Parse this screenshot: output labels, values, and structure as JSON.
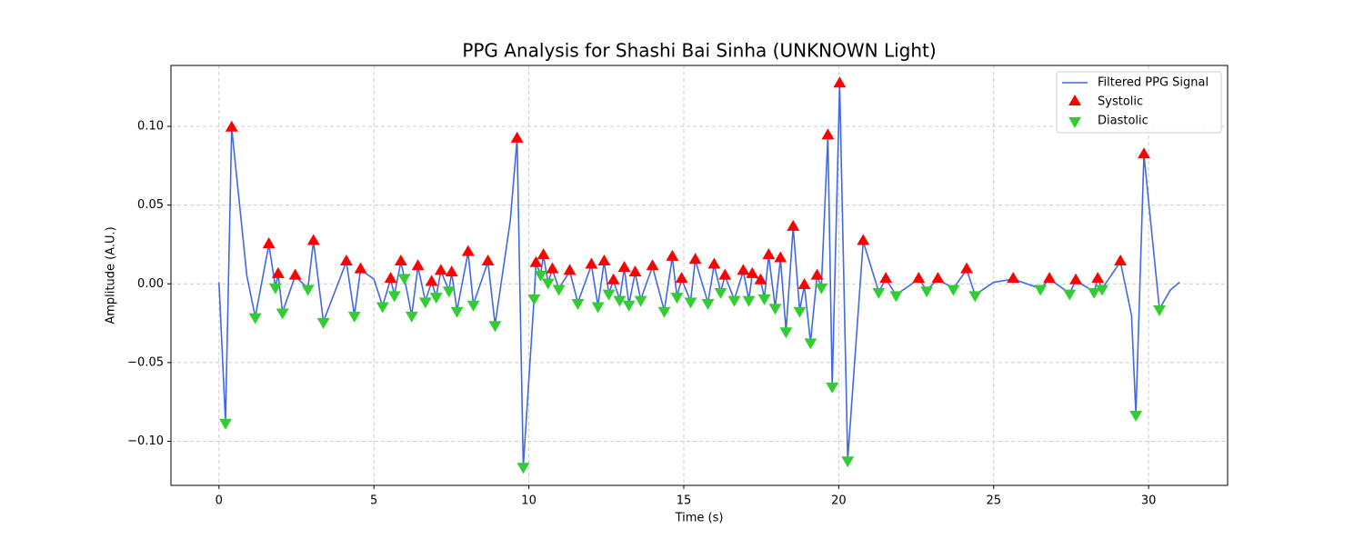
{
  "chart_data": {
    "type": "line",
    "title": "PPG Analysis for Shashi Bai Sinha (UNKNOWN Light)",
    "xlabel": "Time (s)",
    "ylabel": "Amplitude (A.U.)",
    "xlim": [
      -1.55,
      32.55
    ],
    "ylim": [
      -0.128,
      0.1387
    ],
    "xticks": [
      0,
      5,
      10,
      15,
      20,
      25,
      30
    ],
    "yticks": [
      {
        "value": -0.1,
        "label": "−0.10"
      },
      {
        "value": -0.05,
        "label": "−0.05"
      },
      {
        "value": 0,
        "label": "0.00"
      },
      {
        "value": 0.05,
        "label": "0.05"
      },
      {
        "value": 0.1,
        "label": "0.10"
      }
    ],
    "grid": true,
    "legend": "upper right",
    "series": [
      {
        "name": "Filtered PPG Signal",
        "type": "line",
        "color": "#4169e1",
        "x": [
          0,
          0.21,
          0.41,
          0.9,
          1.17,
          1.61,
          1.82,
          1.91,
          2.05,
          2.46,
          2.87,
          3.05,
          3.37,
          4.11,
          4.37,
          4.57,
          5.0,
          5.28,
          5.54,
          5.66,
          5.87,
          5.98,
          6.22,
          6.42,
          6.66,
          6.86,
          7.01,
          7.16,
          7.42,
          7.51,
          7.68,
          8.04,
          8.21,
          8.68,
          8.91,
          9.4,
          9.62,
          9.82,
          10.17,
          10.23,
          10.38,
          10.47,
          10.62,
          10.76,
          10.97,
          11.32,
          11.58,
          12.02,
          12.23,
          12.43,
          12.58,
          12.73,
          12.93,
          13.08,
          13.23,
          13.43,
          13.61,
          13.99,
          14.37,
          14.63,
          14.78,
          14.93,
          15.22,
          15.37,
          15.78,
          15.98,
          16.19,
          16.33,
          16.63,
          16.92,
          17.1,
          17.21,
          17.48,
          17.6,
          17.74,
          17.95,
          18.12,
          18.3,
          18.53,
          18.74,
          18.89,
          19.09,
          19.3,
          19.44,
          19.65,
          19.79,
          20.03,
          20.29,
          20.79,
          21.29,
          21.52,
          21.85,
          22.58,
          22.84,
          23.2,
          23.7,
          24.13,
          24.4,
          25.0,
          25.63,
          26.51,
          26.8,
          27.45,
          27.65,
          28.24,
          28.36,
          28.5,
          29.09,
          29.45,
          29.59,
          29.85,
          30.35,
          30.7,
          31.0
        ],
        "values": [
          0.001,
          -0.088,
          0.099,
          0.005,
          -0.021,
          0.025,
          -0.002,
          0.006,
          -0.018,
          0.005,
          -0.003,
          0.027,
          -0.024,
          0.014,
          -0.02,
          0.009,
          0.003,
          -0.014,
          0.003,
          -0.007,
          0.014,
          0.004,
          -0.02,
          0.011,
          -0.011,
          0.001,
          -0.008,
          0.008,
          -0.004,
          0.007,
          -0.017,
          0.02,
          -0.013,
          0.014,
          -0.026,
          0.04,
          0.092,
          -0.116,
          -0.009,
          0.013,
          0.006,
          0.018,
          0.001,
          0.009,
          -0.003,
          0.008,
          -0.012,
          0.012,
          -0.014,
          0.014,
          -0.006,
          0.002,
          -0.01,
          0.01,
          -0.013,
          0.007,
          -0.01,
          0.011,
          -0.017,
          0.017,
          -0.008,
          0.003,
          -0.011,
          0.015,
          -0.012,
          0.012,
          -0.005,
          0.005,
          -0.01,
          0.008,
          -0.01,
          0.006,
          0.002,
          -0.009,
          0.018,
          -0.015,
          0.016,
          -0.03,
          0.036,
          -0.017,
          -0.001,
          -0.037,
          0.005,
          -0.002,
          0.094,
          -0.065,
          0.127,
          -0.112,
          0.027,
          -0.005,
          0.003,
          -0.007,
          0.003,
          -0.004,
          0.003,
          -0.003,
          0.009,
          -0.007,
          0.001,
          0.003,
          -0.003,
          0.003,
          -0.006,
          0.002,
          -0.005,
          0.003,
          -0.003,
          0.014,
          -0.02,
          -0.083,
          0.082,
          -0.016,
          -0.004,
          0.001
        ]
      },
      {
        "name": "Systolic",
        "type": "scatter",
        "marker": "up",
        "color": "#ff0000",
        "x": [
          0.41,
          1.61,
          1.91,
          2.46,
          3.05,
          4.11,
          4.57,
          5.54,
          5.87,
          6.42,
          6.86,
          7.16,
          7.51,
          8.04,
          8.68,
          9.62,
          10.23,
          10.47,
          10.76,
          11.32,
          12.02,
          12.43,
          12.73,
          13.08,
          13.43,
          13.99,
          14.63,
          14.93,
          15.37,
          15.98,
          16.33,
          16.92,
          17.21,
          17.48,
          17.74,
          18.12,
          18.53,
          18.89,
          19.3,
          19.65,
          20.03,
          20.79,
          21.52,
          22.58,
          23.2,
          24.13,
          25.63,
          26.8,
          27.65,
          28.36,
          29.09,
          29.85
        ],
        "values": [
          0.099,
          0.025,
          0.006,
          0.005,
          0.027,
          0.014,
          0.009,
          0.003,
          0.014,
          0.011,
          0.001,
          0.008,
          0.007,
          0.02,
          0.014,
          0.092,
          0.013,
          0.018,
          0.009,
          0.008,
          0.012,
          0.014,
          0.002,
          0.01,
          0.007,
          0.011,
          0.017,
          0.003,
          0.015,
          0.012,
          0.005,
          0.008,
          0.006,
          0.002,
          0.018,
          0.016,
          0.036,
          -0.001,
          0.005,
          0.094,
          0.127,
          0.027,
          0.003,
          0.003,
          0.003,
          0.009,
          0.003,
          0.003,
          0.002,
          0.003,
          0.014,
          0.082
        ]
      },
      {
        "name": "Diastolic",
        "type": "scatter",
        "marker": "down",
        "color": "#32cd32",
        "x": [
          0.21,
          1.17,
          1.82,
          2.05,
          2.87,
          3.37,
          4.37,
          5.28,
          5.66,
          5.98,
          6.22,
          6.66,
          7.01,
          7.42,
          7.68,
          8.21,
          8.91,
          9.82,
          10.17,
          10.38,
          10.62,
          10.97,
          11.58,
          12.23,
          12.58,
          12.93,
          13.23,
          13.61,
          14.37,
          14.78,
          15.22,
          15.78,
          16.19,
          16.63,
          17.1,
          17.6,
          17.95,
          18.3,
          18.74,
          19.09,
          19.44,
          19.79,
          20.29,
          21.29,
          21.85,
          22.84,
          23.7,
          24.4,
          26.51,
          27.45,
          28.24,
          28.5,
          29.59,
          30.35
        ],
        "values": [
          -0.088,
          -0.021,
          -0.002,
          -0.018,
          -0.003,
          -0.024,
          -0.02,
          -0.014,
          -0.007,
          0.004,
          -0.02,
          -0.011,
          -0.008,
          -0.004,
          -0.017,
          -0.013,
          -0.026,
          -0.116,
          -0.009,
          0.006,
          0.001,
          -0.003,
          -0.012,
          -0.014,
          -0.006,
          -0.01,
          -0.013,
          -0.01,
          -0.017,
          -0.008,
          -0.011,
          -0.012,
          -0.005,
          -0.01,
          -0.01,
          -0.009,
          -0.015,
          -0.03,
          -0.017,
          -0.037,
          -0.002,
          -0.065,
          -0.112,
          -0.005,
          -0.007,
          -0.004,
          -0.003,
          -0.007,
          -0.003,
          -0.006,
          -0.005,
          -0.003,
          -0.083,
          -0.016
        ]
      }
    ]
  }
}
